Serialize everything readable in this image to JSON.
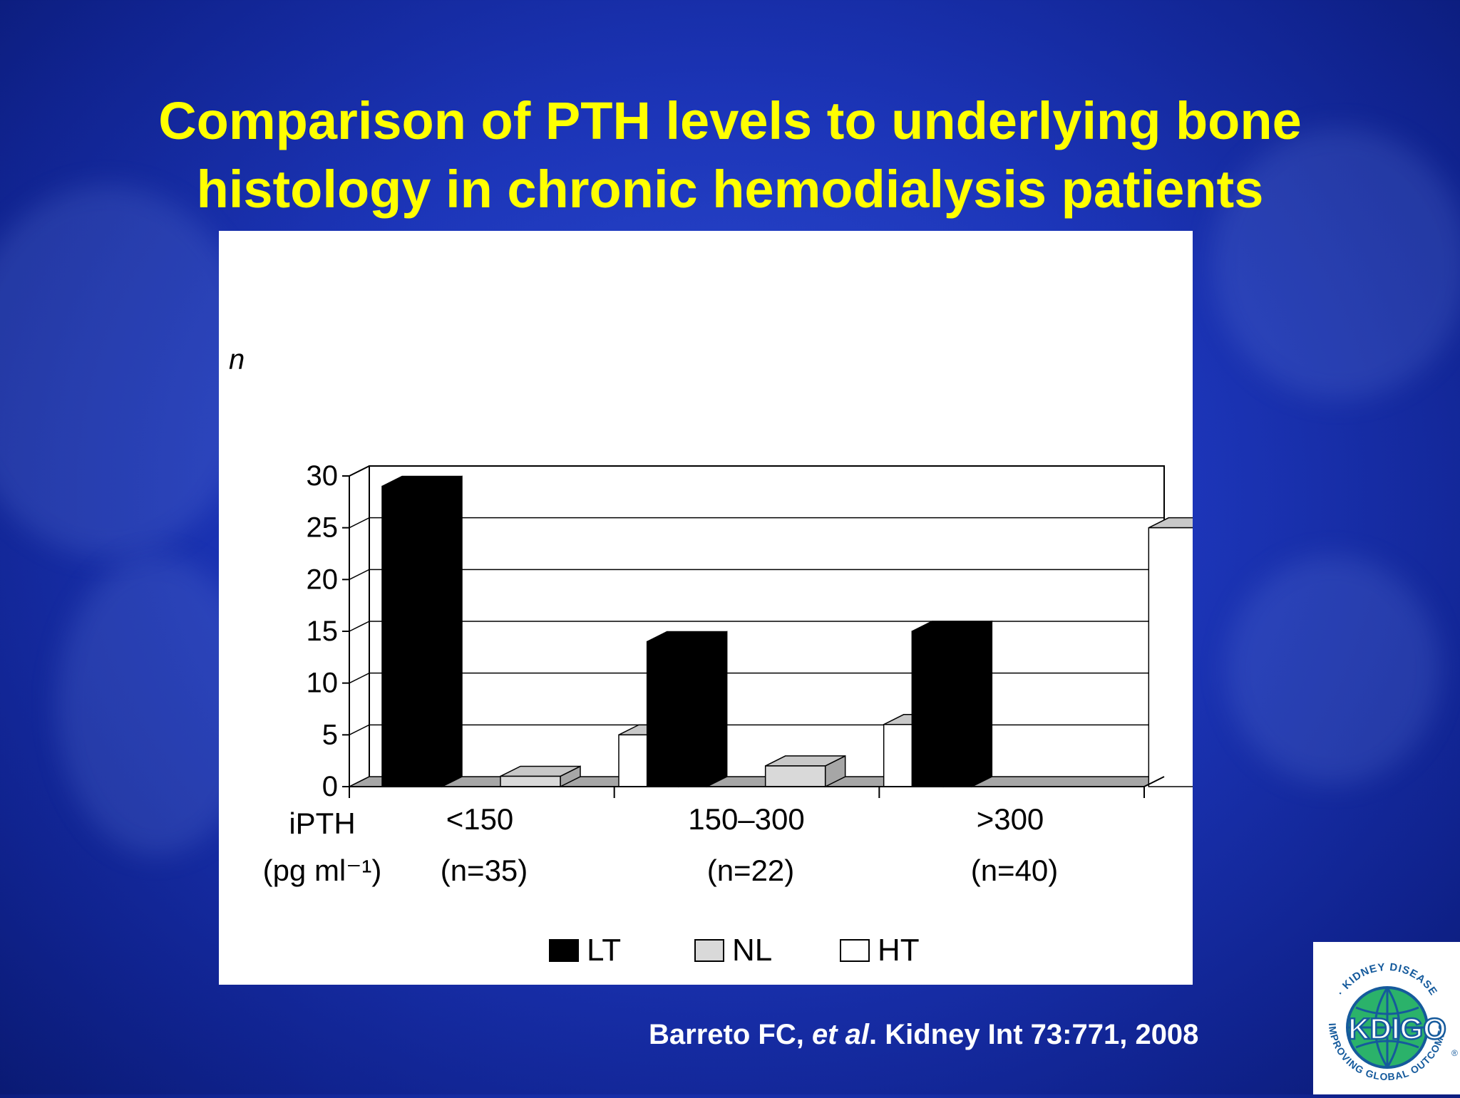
{
  "slide": {
    "title_line1": "Comparison of PTH levels to underlying bone",
    "title_line2": "histology in chronic hemodialysis patients",
    "citation": {
      "authors": "Barreto FC, ",
      "etal": "et al",
      "journal": ". Kidney Int 73:771, 2008"
    },
    "logo": {
      "name": "KDIGO",
      "ring_text_top": "· KIDNEY DISEASE",
      "ring_text_bottom": "IMPROVING GLOBAL OUTCOMES",
      "registered": "®"
    }
  },
  "chart_data": {
    "type": "bar",
    "style": "3d-clustered",
    "ylabel": "n",
    "xlabel_line1": "iPTH",
    "xlabel_line2": "(pg ml⁻¹)",
    "categories": [
      {
        "label": "<150",
        "sublabel": "(n=35)",
        "n": "35"
      },
      {
        "label": "150–300",
        "sublabel": "(n=22)",
        "n": "22"
      },
      {
        "label": ">300",
        "sublabel": "(n=40)",
        "n": "40"
      }
    ],
    "series": [
      {
        "name": "LT",
        "values": [
          29,
          14,
          15
        ]
      },
      {
        "name": "NL",
        "values": [
          1,
          2,
          0
        ]
      },
      {
        "name": "HT",
        "values": [
          5,
          6,
          25
        ]
      }
    ],
    "ylim": [
      0,
      30
    ],
    "yticks": [
      0,
      5,
      10,
      15,
      20,
      25,
      30
    ],
    "grid": true,
    "legend_position": "bottom",
    "colors": {
      "LT": "#000000",
      "NL": "#d9d9d9",
      "HT": "#ffffff",
      "side": "#a6a6a6",
      "top": "#c8c8c8"
    }
  }
}
